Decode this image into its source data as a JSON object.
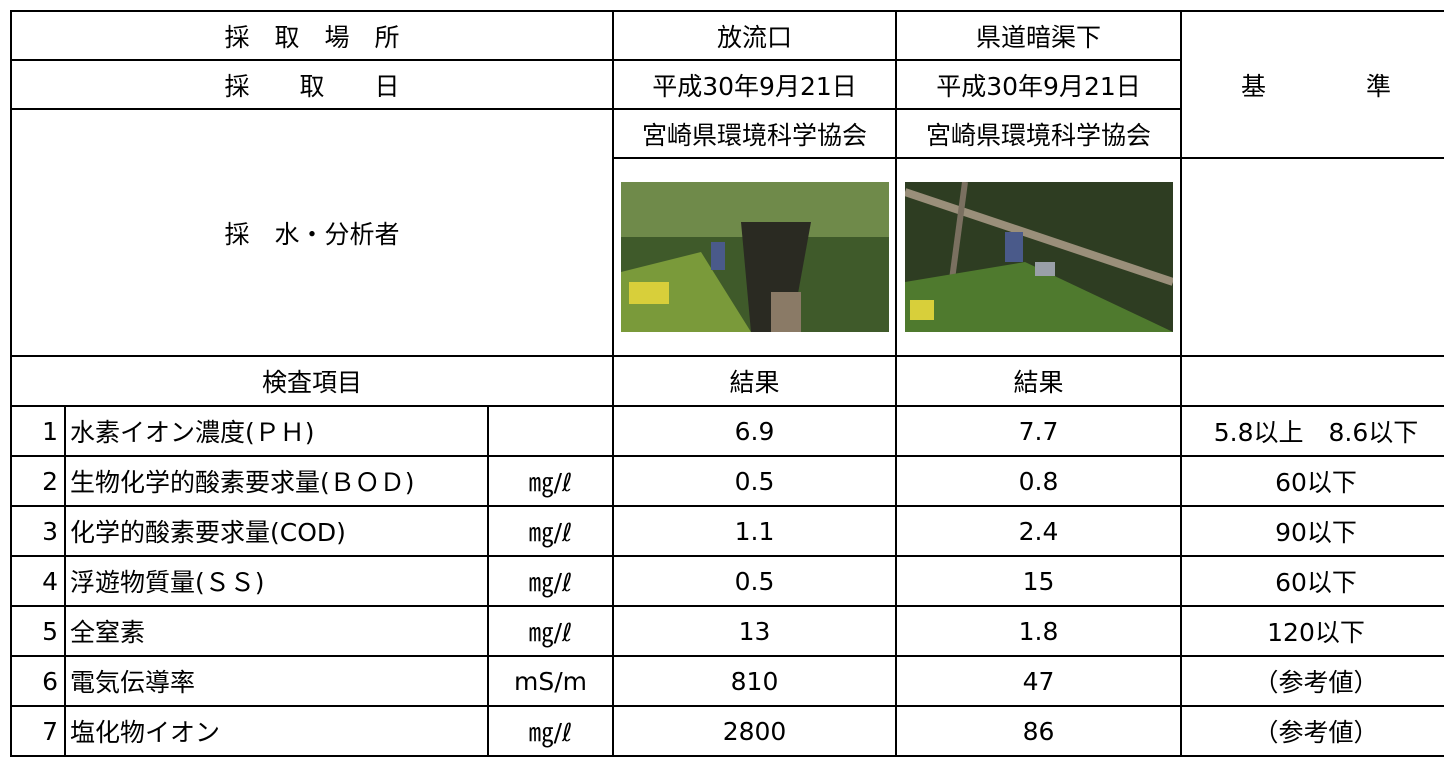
{
  "header": {
    "location_label": "採　取　場　所",
    "date_label": "採　　取　　日",
    "analyst_label": "採　水・分析者",
    "standard_label": "基　　　　準",
    "item_label": "検査項目",
    "sites": [
      {
        "location": "放流口",
        "date": "平成30年9月21日",
        "analyst": "宮崎県環境科学協会",
        "result_label": "結果"
      },
      {
        "location": "県道暗渠下",
        "date": "平成30年9月21日",
        "analyst": "宮崎県環境科学協会",
        "result_label": "結果"
      }
    ]
  },
  "table": {
    "rows": [
      {
        "no": "1",
        "item": "水素イオン濃度(ＰＨ)",
        "results": [
          "6.9",
          "7.7"
        ],
        "standard": "5.8以上　8.6以下"
      },
      {
        "no": "2",
        "item": "生物化学的酸素要求量(ＢＯＤ)",
        "unit": "㎎/ℓ",
        "results": [
          "0.5",
          "0.8"
        ],
        "standard": "60以下"
      },
      {
        "no": "3",
        "item": "化学的酸素要求量(COD)",
        "unit": "㎎/ℓ",
        "results": [
          "1.1",
          "2.4"
        ],
        "standard": "90以下"
      },
      {
        "no": "4",
        "item": "浮遊物質量(ＳＳ)",
        "unit": "㎎/ℓ",
        "results": [
          "0.5",
          "15"
        ],
        "standard": "60以下"
      },
      {
        "no": "5",
        "item": "全窒素",
        "unit": "㎎/ℓ",
        "results": [
          "13",
          "1.8"
        ],
        "standard": "120以下"
      },
      {
        "no": "6",
        "item": "電気伝導率",
        "unit": "mS/m",
        "results": [
          "810",
          "47"
        ],
        "standard": "（参考値）"
      },
      {
        "no": "7",
        "item": "塩化物イオン",
        "unit": "㎎/ℓ",
        "results": [
          "2800",
          "86"
        ],
        "standard": "（参考値）"
      }
    ]
  }
}
